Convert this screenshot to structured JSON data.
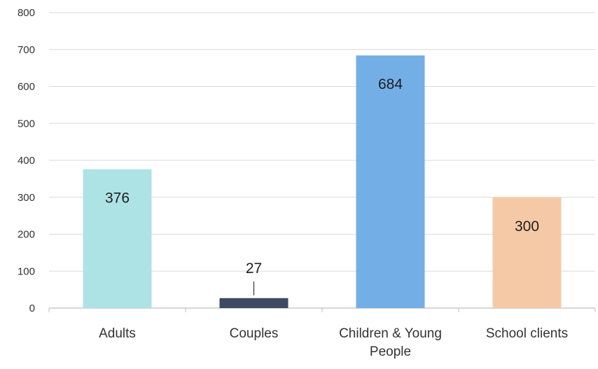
{
  "chart_data": {
    "type": "bar",
    "categories": [
      [
        "Adults"
      ],
      [
        "Couples"
      ],
      [
        "Children & Young",
        "People"
      ],
      [
        "School clients"
      ]
    ],
    "values": [
      376,
      27,
      684,
      300
    ],
    "data_labels": [
      "376",
      "27",
      "684",
      "300"
    ],
    "bar_colors": [
      "#aee3e6",
      "#3d4a63",
      "#74aee6",
      "#f6c9a6"
    ],
    "yticks": [
      0,
      100,
      200,
      300,
      400,
      500,
      600,
      700,
      800
    ],
    "ylim": [
      0,
      800
    ],
    "grid": true,
    "legend": "none",
    "title": "",
    "xlabel": "",
    "ylabel": ""
  }
}
